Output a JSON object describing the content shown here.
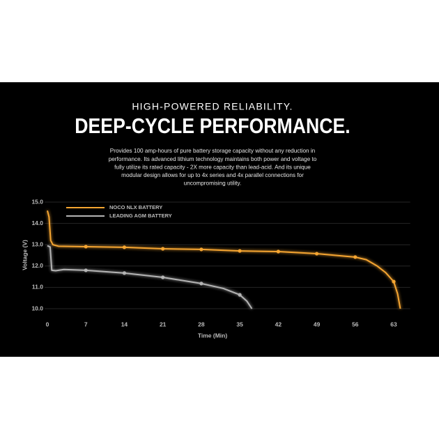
{
  "chart_data": {
    "type": "line",
    "kicker": "HIGH-POWERED RELIABILITY.",
    "title": "DEEP-CYCLE PERFORMANCE.",
    "description": [
      "Provides 100 amp-hours of pure battery storage capacity without any reduction in",
      "performance. Its advanced lithium technology maintains both power and voltage to",
      "fully utilize its rated capacity - 2X more capacity than lead-acid. And its unique",
      "modular design allows for up to 4x series and 4x parallel connections for",
      "uncompromising utility."
    ],
    "x_label": "Time (Min)",
    "y_label": "Voltage (V)",
    "xlim": [
      0,
      66
    ],
    "ylim": [
      10,
      15
    ],
    "xticks": [
      0,
      7,
      14,
      21,
      28,
      35,
      42,
      49,
      56,
      63
    ],
    "yticks": [
      {
        "value": 10,
        "label": "10.0"
      },
      {
        "value": 11,
        "label": "11.0"
      },
      {
        "value": 12,
        "label": "12.0"
      },
      {
        "value": 13,
        "label": "13.0"
      },
      {
        "value": 14,
        "label": "14.0"
      },
      {
        "value": 15,
        "label": "15.0"
      }
    ],
    "grid": true,
    "series": [
      {
        "name": "NOCO NLX BATTERY",
        "color": "#f5a531",
        "x": [
          0,
          0.3,
          0.6,
          1,
          2,
          7,
          14,
          21,
          28,
          35,
          42,
          49,
          56,
          58,
          60,
          61.5,
          63,
          63.7,
          64.2
        ],
        "values": [
          14.6,
          14.3,
          13.2,
          13.0,
          12.93,
          12.91,
          12.88,
          12.81,
          12.78,
          12.71,
          12.68,
          12.58,
          12.42,
          12.3,
          12.0,
          11.7,
          11.27,
          10.7,
          10.0
        ]
      },
      {
        "name": "LEADING AGM BATTERY",
        "color": "#b4b4b4",
        "x": [
          0,
          0.5,
          0.8,
          1.5,
          3,
          7,
          14,
          21,
          28,
          32,
          35,
          36.3,
          37.2
        ],
        "values": [
          12.95,
          12.9,
          11.8,
          11.78,
          11.84,
          11.8,
          11.67,
          11.47,
          11.18,
          10.95,
          10.65,
          10.35,
          10.0
        ]
      }
    ]
  }
}
